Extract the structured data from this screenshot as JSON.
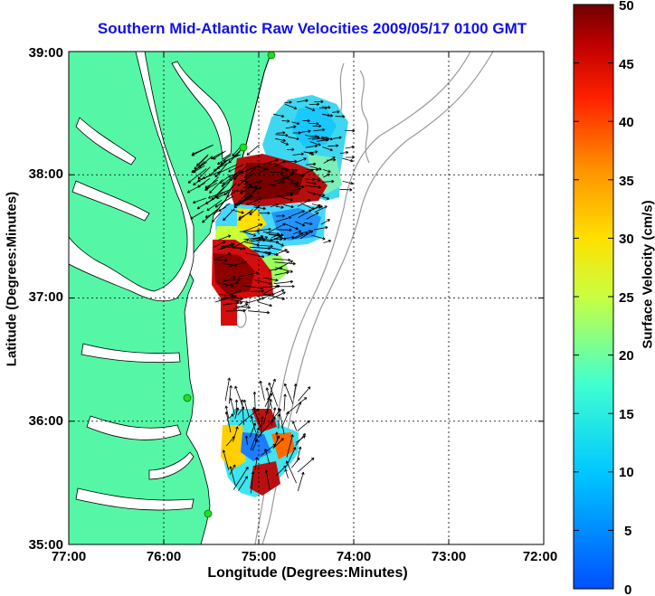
{
  "title": "Southern Mid-Atlantic Raw Velocities 2009/05/17 0100 GMT",
  "chart_data": {
    "type": "heatmap",
    "xlabel": "Longitude (Degrees:Minutes)",
    "ylabel": "Latitude (Degrees:Minutes)",
    "x_ticks": [
      "77:00",
      "76:00",
      "75:00",
      "74:00",
      "73:00",
      "72:00"
    ],
    "y_ticks": [
      "39:00",
      "38:00",
      "37:00",
      "36:00",
      "35:00"
    ],
    "xlim": [
      -77,
      -72
    ],
    "ylim": [
      35,
      39
    ],
    "grid": true,
    "colorbar": {
      "label": "Surface Velocity (cm/s)",
      "range": [
        0,
        50
      ],
      "ticks": [
        "50",
        "45",
        "40",
        "35",
        "30",
        "25",
        "20",
        "15",
        "10",
        "5",
        "0"
      ]
    },
    "colors": {
      "land": "#55f7a6",
      "low": "#1b6bff",
      "high": "#7a0000",
      "title": "#1010ee"
    }
  }
}
